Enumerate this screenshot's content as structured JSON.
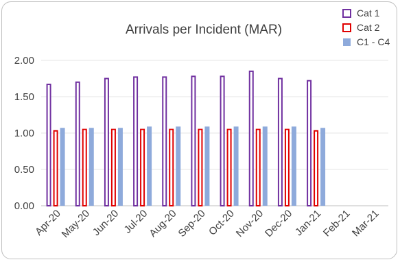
{
  "chart_data": {
    "type": "bar",
    "title": "Arrivals per Incident (MAR)",
    "categories": [
      "Apr-20",
      "May-20",
      "Jun-20",
      "Jul-20",
      "Aug-20",
      "Sep-20",
      "Oct-20",
      "Nov-20",
      "Dec-20",
      "Jan-21",
      "Feb-21",
      "Mar-21"
    ],
    "series": [
      {
        "name": "Cat 1",
        "values": [
          1.67,
          1.7,
          1.75,
          1.77,
          1.77,
          1.78,
          1.78,
          1.85,
          1.75,
          1.72,
          null,
          null
        ],
        "style": "outline",
        "color": "#7030a0"
      },
      {
        "name": "Cat 2",
        "values": [
          1.03,
          1.05,
          1.05,
          1.05,
          1.05,
          1.05,
          1.05,
          1.05,
          1.05,
          1.03,
          null,
          null
        ],
        "style": "outline",
        "color": "#e00000"
      },
      {
        "name": "C1 - C4",
        "values": [
          1.07,
          1.07,
          1.07,
          1.09,
          1.09,
          1.09,
          1.09,
          1.09,
          1.09,
          1.07,
          null,
          null
        ],
        "style": "filled",
        "color": "#8eaadb"
      }
    ],
    "yticks": [
      "0.00",
      "0.50",
      "1.00",
      "1.50",
      "2.00"
    ],
    "ylim": [
      0,
      2.0
    ],
    "xlabel": "",
    "ylabel": "",
    "grid": true,
    "legend_position": "top-right",
    "gridline_color": "#e6e6e6",
    "axis_color": "#bfbfbf"
  }
}
